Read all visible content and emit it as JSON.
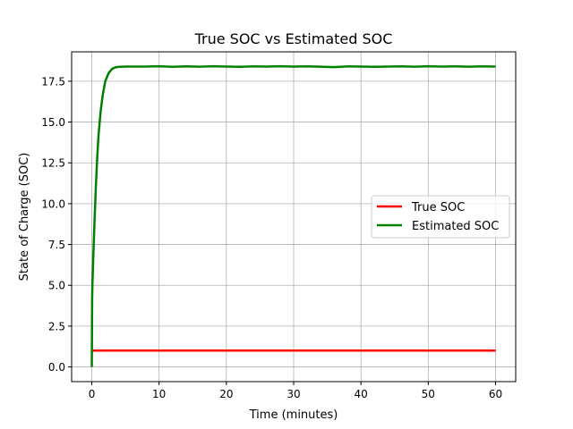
{
  "chart_data": {
    "type": "line",
    "title": "True SOC vs Estimated SOC",
    "xlabel": "Time (minutes)",
    "ylabel": "State of Charge (SOC)",
    "xlim": [
      -3,
      63
    ],
    "ylim": [
      -0.9,
      19.3
    ],
    "x_ticks": [
      0,
      10,
      20,
      30,
      40,
      50,
      60
    ],
    "x_tick_labels": [
      "0",
      "10",
      "20",
      "30",
      "40",
      "50",
      "60"
    ],
    "y_ticks": [
      0.0,
      2.5,
      5.0,
      7.5,
      10.0,
      12.5,
      15.0,
      17.5
    ],
    "y_tick_labels": [
      "0.0",
      "2.5",
      "5.0",
      "7.5",
      "10.0",
      "12.5",
      "15.0",
      "17.5"
    ],
    "grid": true,
    "legend_position": "center-right",
    "series": [
      {
        "name": "True SOC",
        "color": "#ff0000",
        "x": [
          0,
          60
        ],
        "y": [
          1.0,
          1.0
        ]
      },
      {
        "name": "Estimated SOC",
        "color": "#008000",
        "x": [
          0,
          0.05,
          0.1,
          0.2,
          0.4,
          0.6,
          0.8,
          1.0,
          1.3,
          1.6,
          2.0,
          2.5,
          3.0,
          3.5,
          4.0,
          5,
          6,
          8,
          10,
          12,
          14,
          16,
          18,
          20,
          22,
          24,
          26,
          28,
          30,
          32,
          34,
          36,
          38,
          40,
          42,
          44,
          46,
          48,
          50,
          52,
          54,
          56,
          58,
          60
        ],
        "y": [
          0.0,
          4.2,
          5.2,
          6.5,
          8.9,
          11.0,
          12.8,
          14.2,
          15.6,
          16.6,
          17.5,
          18.0,
          18.25,
          18.35,
          18.38,
          18.4,
          18.4,
          18.4,
          18.42,
          18.38,
          18.41,
          18.39,
          18.42,
          18.4,
          18.38,
          18.41,
          18.4,
          18.42,
          18.4,
          18.41,
          18.39,
          18.36,
          18.41,
          18.4,
          18.38,
          18.4,
          18.41,
          18.39,
          18.42,
          18.4,
          18.41,
          18.39,
          18.41,
          18.4
        ]
      }
    ]
  }
}
